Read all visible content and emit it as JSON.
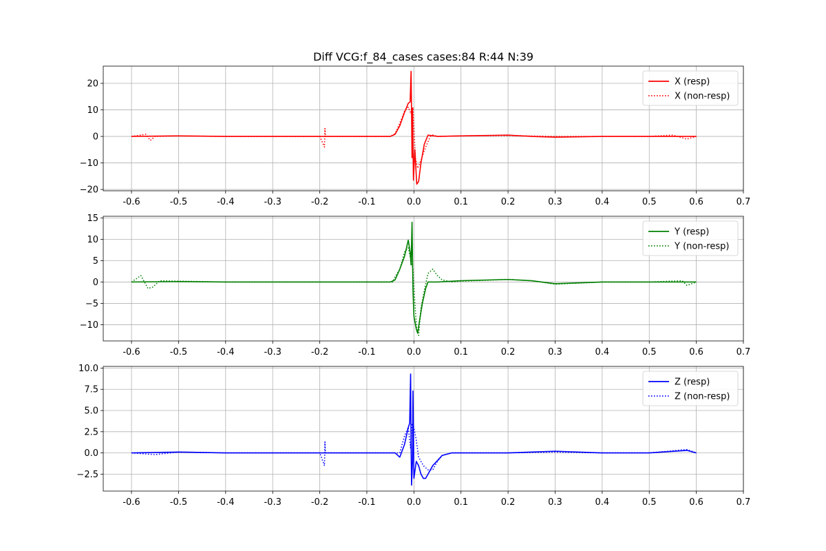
{
  "chart_data": {
    "type": "line",
    "title": "Diff VCG:f_84_cases cases:84 R:44 N:39",
    "x_tick_labels": [
      "-0.6",
      "-0.5",
      "-0.4",
      "-0.3",
      "-0.2",
      "-0.1",
      "0.0",
      "0.1",
      "0.2",
      "0.3",
      "0.4",
      "0.5",
      "0.6",
      "0.7"
    ],
    "x_ticks": [
      -0.6,
      -0.5,
      -0.4,
      -0.3,
      -0.2,
      -0.1,
      0.0,
      0.1,
      0.2,
      0.3,
      0.4,
      0.5,
      0.6,
      0.7
    ],
    "xlim": [
      -0.66,
      0.7
    ],
    "grid": true,
    "legend_placement": "top-right",
    "panels": [
      {
        "id": "x",
        "ylim": [
          -20.5,
          26.5
        ],
        "y_ticks": [
          -20,
          -10,
          0,
          10,
          20
        ],
        "y_tick_labels": [
          "−20",
          "−10",
          "0",
          "10",
          "20"
        ],
        "color": "#ff0000",
        "series": [
          {
            "name": "X (resp)",
            "style": "solid",
            "points": [
              [
                -0.6,
                0
              ],
              [
                -0.5,
                0.2
              ],
              [
                -0.4,
                0
              ],
              [
                -0.3,
                0
              ],
              [
                -0.2,
                0
              ],
              [
                -0.1,
                0
              ],
              [
                -0.05,
                0
              ],
              [
                -0.04,
                0.8
              ],
              [
                -0.03,
                4
              ],
              [
                -0.02,
                9
              ],
              [
                -0.012,
                12.5
              ],
              [
                -0.008,
                13
              ],
              [
                -0.006,
                24.5
              ],
              [
                -0.005,
                9
              ],
              [
                -0.004,
                -8
              ],
              [
                -0.003,
                10.5
              ],
              [
                -0.001,
                -16.5
              ],
              [
                0.002,
                -5
              ],
              [
                0.006,
                -18
              ],
              [
                0.01,
                -17
              ],
              [
                0.015,
                -10
              ],
              [
                0.022,
                -3
              ],
              [
                0.03,
                0.5
              ],
              [
                0.05,
                0
              ],
              [
                0.1,
                0.2
              ],
              [
                0.2,
                0.5
              ],
              [
                0.25,
                0
              ],
              [
                0.3,
                -0.3
              ],
              [
                0.4,
                0
              ],
              [
                0.5,
                0
              ],
              [
                0.55,
                0
              ],
              [
                0.6,
                0
              ]
            ]
          },
          {
            "name": "X (non-resp)",
            "style": "dotted",
            "points": [
              [
                -0.6,
                0
              ],
              [
                -0.57,
                0.8
              ],
              [
                -0.56,
                -1.5
              ],
              [
                -0.55,
                0
              ],
              [
                -0.5,
                0.2
              ],
              [
                -0.4,
                0
              ],
              [
                -0.3,
                0
              ],
              [
                -0.2,
                0
              ],
              [
                -0.19,
                -4
              ],
              [
                -0.189,
                3
              ],
              [
                -0.188,
                0
              ],
              [
                -0.1,
                0
              ],
              [
                -0.05,
                0
              ],
              [
                -0.04,
                1
              ],
              [
                -0.03,
                5
              ],
              [
                -0.02,
                9.5
              ],
              [
                -0.012,
                11
              ],
              [
                -0.006,
                8.5
              ],
              [
                -0.002,
                11
              ],
              [
                0.003,
                -8
              ],
              [
                0.008,
                -12
              ],
              [
                0.015,
                -9
              ],
              [
                0.025,
                -4
              ],
              [
                0.035,
                0
              ],
              [
                0.04,
                0.5
              ],
              [
                0.05,
                0
              ],
              [
                0.1,
                0.2
              ],
              [
                0.2,
                0.3
              ],
              [
                0.3,
                0
              ],
              [
                0.4,
                0
              ],
              [
                0.5,
                0
              ],
              [
                0.55,
                0.5
              ],
              [
                0.58,
                -1
              ],
              [
                0.6,
                0
              ]
            ]
          }
        ]
      },
      {
        "id": "y",
        "ylim": [
          -13.8,
          15.4
        ],
        "y_ticks": [
          -10,
          -5,
          0,
          5,
          10,
          15
        ],
        "y_tick_labels": [
          "−10",
          "−5",
          "0",
          "5",
          "10",
          "15"
        ],
        "color": "#008000",
        "series": [
          {
            "name": "Y (resp)",
            "style": "solid",
            "points": [
              [
                -0.6,
                0
              ],
              [
                -0.5,
                0.1
              ],
              [
                -0.4,
                0
              ],
              [
                -0.3,
                0
              ],
              [
                -0.2,
                0
              ],
              [
                -0.1,
                0
              ],
              [
                -0.05,
                0
              ],
              [
                -0.04,
                0.5
              ],
              [
                -0.03,
                3
              ],
              [
                -0.02,
                6
              ],
              [
                -0.012,
                9.8
              ],
              [
                -0.008,
                7
              ],
              [
                -0.006,
                4
              ],
              [
                -0.004,
                14
              ],
              [
                -0.002,
                -2
              ],
              [
                0,
                -8
              ],
              [
                0.005,
                -11
              ],
              [
                0.008,
                -12
              ],
              [
                0.012,
                -9
              ],
              [
                0.018,
                -5
              ],
              [
                0.025,
                -1.5
              ],
              [
                0.03,
                0
              ],
              [
                0.05,
                0
              ],
              [
                0.1,
                0.3
              ],
              [
                0.2,
                0.6
              ],
              [
                0.25,
                0.3
              ],
              [
                0.3,
                -0.4
              ],
              [
                0.4,
                0
              ],
              [
                0.5,
                0
              ],
              [
                0.6,
                0
              ]
            ]
          },
          {
            "name": "Y (non-resp)",
            "style": "dotted",
            "points": [
              [
                -0.6,
                0
              ],
              [
                -0.58,
                1.5
              ],
              [
                -0.565,
                -1.5
              ],
              [
                -0.555,
                -1.2
              ],
              [
                -0.54,
                0.3
              ],
              [
                -0.5,
                0.2
              ],
              [
                -0.4,
                0
              ],
              [
                -0.3,
                0
              ],
              [
                -0.2,
                0
              ],
              [
                -0.1,
                0
              ],
              [
                -0.045,
                0
              ],
              [
                -0.04,
                1.2
              ],
              [
                -0.03,
                3
              ],
              [
                -0.02,
                7
              ],
              [
                -0.012,
                8
              ],
              [
                -0.006,
                5
              ],
              [
                -0.002,
                3
              ],
              [
                0.002,
                -5
              ],
              [
                0.006,
                -11
              ],
              [
                0.01,
                -12.5
              ],
              [
                0.015,
                -6
              ],
              [
                0.022,
                -2
              ],
              [
                0.03,
                2
              ],
              [
                0.04,
                3
              ],
              [
                0.05,
                1.5
              ],
              [
                0.06,
                0.5
              ],
              [
                0.08,
                0
              ],
              [
                0.1,
                0.2
              ],
              [
                0.2,
                0.6
              ],
              [
                0.25,
                0.3
              ],
              [
                0.3,
                -0.5
              ],
              [
                0.4,
                0
              ],
              [
                0.5,
                0
              ],
              [
                0.57,
                0.3
              ],
              [
                0.58,
                -0.8
              ],
              [
                0.6,
                0
              ]
            ]
          }
        ]
      },
      {
        "id": "z",
        "ylim": [
          -4.5,
          10.2
        ],
        "y_ticks": [
          -2.5,
          0.0,
          2.5,
          5.0,
          7.5,
          10.0
        ],
        "y_tick_labels": [
          "−2.5",
          "0.0",
          "2.5",
          "5.0",
          "7.5",
          "10.0"
        ],
        "color": "#0000ff",
        "series": [
          {
            "name": "Z (resp)",
            "style": "solid",
            "points": [
              [
                -0.6,
                0
              ],
              [
                -0.5,
                0.1
              ],
              [
                -0.4,
                0
              ],
              [
                -0.3,
                0
              ],
              [
                -0.2,
                0
              ],
              [
                -0.1,
                0
              ],
              [
                -0.04,
                0
              ],
              [
                -0.03,
                -0.5
              ],
              [
                -0.02,
                1
              ],
              [
                -0.012,
                3
              ],
              [
                -0.009,
                3.5
              ],
              [
                -0.007,
                9.3
              ],
              [
                -0.006,
                1
              ],
              [
                -0.005,
                -3.8
              ],
              [
                -0.003,
                -1
              ],
              [
                -0.002,
                7.3
              ],
              [
                0,
                -3
              ],
              [
                0.005,
                -1
              ],
              [
                0.01,
                -1.5
              ],
              [
                0.015,
                -2.5
              ],
              [
                0.02,
                -3
              ],
              [
                0.025,
                -3
              ],
              [
                0.04,
                -1.5
              ],
              [
                0.06,
                -0.3
              ],
              [
                0.08,
                0
              ],
              [
                0.1,
                0
              ],
              [
                0.2,
                0
              ],
              [
                0.3,
                0.2
              ],
              [
                0.4,
                0
              ],
              [
                0.5,
                0
              ],
              [
                0.58,
                0.3
              ],
              [
                0.6,
                0
              ]
            ]
          },
          {
            "name": "Z (non-resp)",
            "style": "dotted",
            "points": [
              [
                -0.6,
                0
              ],
              [
                -0.55,
                -0.2
              ],
              [
                -0.5,
                0.1
              ],
              [
                -0.4,
                0
              ],
              [
                -0.3,
                0
              ],
              [
                -0.2,
                0
              ],
              [
                -0.19,
                -1.5
              ],
              [
                -0.189,
                1.3
              ],
              [
                -0.188,
                0
              ],
              [
                -0.1,
                0
              ],
              [
                -0.04,
                0
              ],
              [
                -0.03,
                0
              ],
              [
                -0.02,
                2
              ],
              [
                -0.012,
                3
              ],
              [
                -0.007,
                0.5
              ],
              [
                -0.004,
                3.5
              ],
              [
                0,
                3
              ],
              [
                0.005,
                1.5
              ],
              [
                0.01,
                -0.5
              ],
              [
                0.02,
                -1.5
              ],
              [
                0.03,
                -2
              ],
              [
                0.04,
                -2
              ],
              [
                0.05,
                -1
              ],
              [
                0.06,
                -0.3
              ],
              [
                0.08,
                0
              ],
              [
                0.1,
                0
              ],
              [
                0.2,
                0
              ],
              [
                0.3,
                0.1
              ],
              [
                0.4,
                0
              ],
              [
                0.5,
                0
              ],
              [
                0.58,
                0.4
              ],
              [
                0.6,
                0
              ]
            ]
          }
        ]
      }
    ]
  }
}
